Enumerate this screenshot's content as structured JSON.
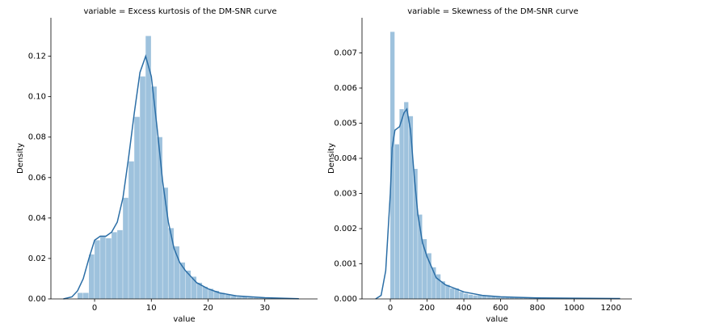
{
  "chart_data": [
    {
      "type": "histogram",
      "title": "variable =  Excess kurtosis of the DM-SNR curve",
      "x_label": "value",
      "y_label": "Density",
      "histogram": {
        "color": "#9ec2dd",
        "bins": [
          -3,
          -2,
          -1,
          0,
          1,
          2,
          3,
          4,
          5,
          6,
          7,
          8,
          9,
          10,
          11,
          12,
          13,
          14,
          15,
          16,
          17,
          18,
          19,
          20,
          21,
          22,
          23,
          24,
          25,
          26,
          27,
          28,
          29,
          30,
          31,
          32,
          33,
          34,
          35
        ],
        "values": [
          0.003,
          0.003,
          0.022,
          0.029,
          0.031,
          0.03,
          0.033,
          0.034,
          0.05,
          0.068,
          0.09,
          0.11,
          0.13,
          0.105,
          0.08,
          0.055,
          0.035,
          0.026,
          0.018,
          0.014,
          0.011,
          0.008,
          0.006,
          0.005,
          0.004,
          0.003,
          0.002,
          0.0015,
          0.001,
          0.001,
          0.0007,
          0.0005,
          0.0005,
          0.0005,
          0.0004,
          0.0003,
          0.0003,
          0.0002
        ]
      },
      "kde": {
        "color": "#2b6ea6",
        "x": [
          -5.5,
          -4,
          -3,
          -2,
          -1,
          0,
          1,
          2,
          3,
          4,
          5,
          6,
          7,
          8,
          9,
          10,
          11,
          12,
          13,
          14,
          15,
          16,
          18,
          20,
          22,
          25,
          30,
          36
        ],
        "values": [
          0,
          0.001,
          0.004,
          0.01,
          0.02,
          0.029,
          0.031,
          0.031,
          0.033,
          0.038,
          0.05,
          0.07,
          0.092,
          0.112,
          0.12,
          0.11,
          0.085,
          0.058,
          0.038,
          0.025,
          0.018,
          0.014,
          0.008,
          0.005,
          0.003,
          0.0015,
          0.0006,
          0.0001
        ]
      },
      "xlim": [
        -7.7,
        39.3
      ],
      "xticks": [
        0,
        10,
        20,
        30
      ],
      "ylim": [
        0,
        0.139
      ],
      "yticks": [
        {
          "value": 0,
          "label": "0.00"
        },
        {
          "value": 0.02,
          "label": "0.02"
        },
        {
          "value": 0.04,
          "label": "0.04"
        },
        {
          "value": 0.06,
          "label": "0.06"
        },
        {
          "value": 0.08,
          "label": "0.08"
        },
        {
          "value": 0.1,
          "label": "0.10"
        },
        {
          "value": 0.12,
          "label": "0.12"
        }
      ]
    },
    {
      "type": "histogram",
      "title": "variable =  Skewness of the DM-SNR curve",
      "x_label": "value",
      "y_label": "Density",
      "histogram": {
        "color": "#9ec2dd",
        "bins": [
          0,
          25,
          50,
          75,
          100,
          125,
          150,
          175,
          200,
          225,
          250,
          275,
          300,
          325,
          350,
          375,
          400,
          425,
          450,
          475,
          500,
          525,
          550,
          575,
          600,
          625,
          650,
          675,
          700,
          725,
          750,
          775,
          800,
          825,
          850,
          875,
          900,
          925,
          950,
          975,
          1000,
          1025,
          1050,
          1075,
          1100,
          1125,
          1150,
          1175,
          1200,
          1225,
          1250
        ],
        "values": [
          0.0076,
          0.0044,
          0.0054,
          0.0056,
          0.0052,
          0.0037,
          0.0024,
          0.0017,
          0.0013,
          0.0009,
          0.0007,
          0.0005,
          0.0004,
          0.0003,
          0.0003,
          0.0002,
          0.00015,
          0.00012,
          0.0001,
          0.0001,
          9e-05,
          8e-05,
          7e-05,
          6e-05,
          5e-05,
          5e-05,
          4e-05,
          4e-05,
          4e-05,
          3e-05,
          3e-05,
          3e-05,
          3e-05,
          2e-05,
          2e-05,
          2e-05,
          2e-05,
          2e-05,
          2e-05,
          2e-05,
          2e-05,
          1e-05,
          1e-05,
          1e-05,
          1e-05,
          1e-05,
          1e-05,
          1e-05,
          1e-05,
          1e-05
        ]
      },
      "kde": {
        "color": "#2b6ea6",
        "x": [
          -80,
          -50,
          -25,
          0,
          10,
          25,
          50,
          75,
          90,
          110,
          130,
          150,
          175,
          200,
          250,
          300,
          350,
          400,
          500,
          600,
          800,
          1000,
          1250
        ],
        "values": [
          0,
          0.0001,
          0.0008,
          0.003,
          0.0043,
          0.0048,
          0.0049,
          0.0053,
          0.0054,
          0.0048,
          0.0035,
          0.0024,
          0.0016,
          0.0012,
          0.0006,
          0.0004,
          0.0003,
          0.0002,
          0.0001,
          6e-05,
          3e-05,
          2e-05,
          1e-05
        ]
      },
      "xlim": [
        -154,
        1314
      ],
      "xticks": [
        0,
        200,
        400,
        600,
        800,
        1000,
        1200
      ],
      "ylim": [
        0,
        0.008
      ],
      "yticks": [
        {
          "value": 0,
          "label": "0.000"
        },
        {
          "value": 0.001,
          "label": "0.001"
        },
        {
          "value": 0.002,
          "label": "0.002"
        },
        {
          "value": 0.003,
          "label": "0.003"
        },
        {
          "value": 0.004,
          "label": "0.004"
        },
        {
          "value": 0.005,
          "label": "0.005"
        },
        {
          "value": 0.006,
          "label": "0.006"
        },
        {
          "value": 0.007,
          "label": "0.007"
        }
      ]
    }
  ]
}
